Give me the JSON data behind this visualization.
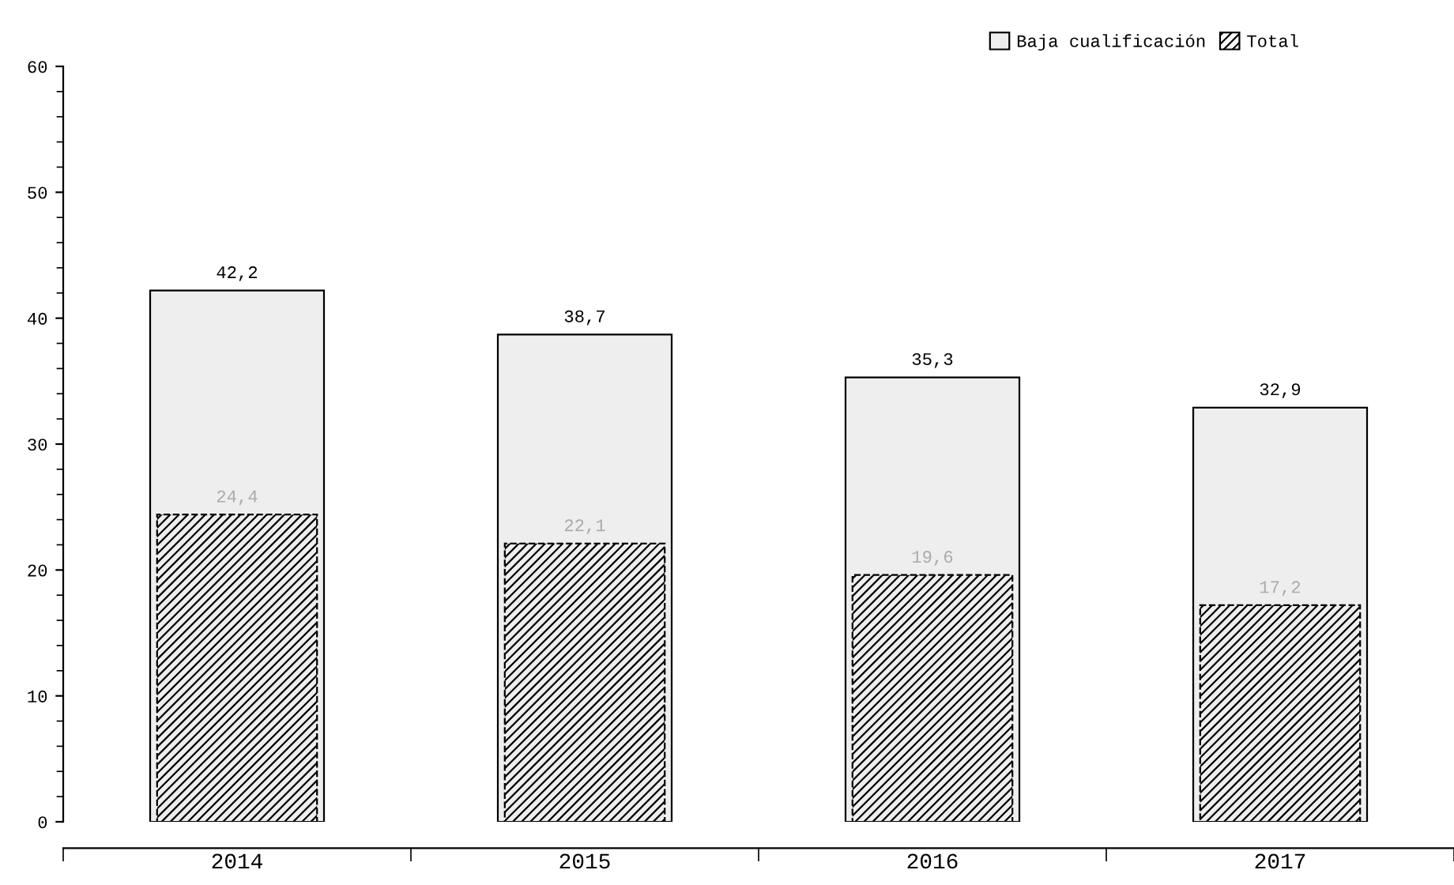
{
  "chart_data": {
    "type": "bar",
    "categories": [
      "2014",
      "2015",
      "2016",
      "2017"
    ],
    "series": [
      {
        "name": "Baja cualificación",
        "color": "#eeeeee",
        "values": [
          42.2,
          38.7,
          35.3,
          32.9
        ],
        "value_labels": [
          "42,2",
          "38,7",
          "35,3",
          "32,9"
        ]
      },
      {
        "name": "Total",
        "color": "#000000",
        "values": [
          24.4,
          22.1,
          19.6,
          17.2
        ],
        "value_labels": [
          "24,4",
          "22,1",
          "19,6",
          "17,2"
        ]
      }
    ],
    "ylim": [
      0,
      60
    ],
    "yticks": [
      0,
      10,
      20,
      30,
      40,
      50,
      60
    ],
    "grid": false,
    "legend": "top right"
  }
}
